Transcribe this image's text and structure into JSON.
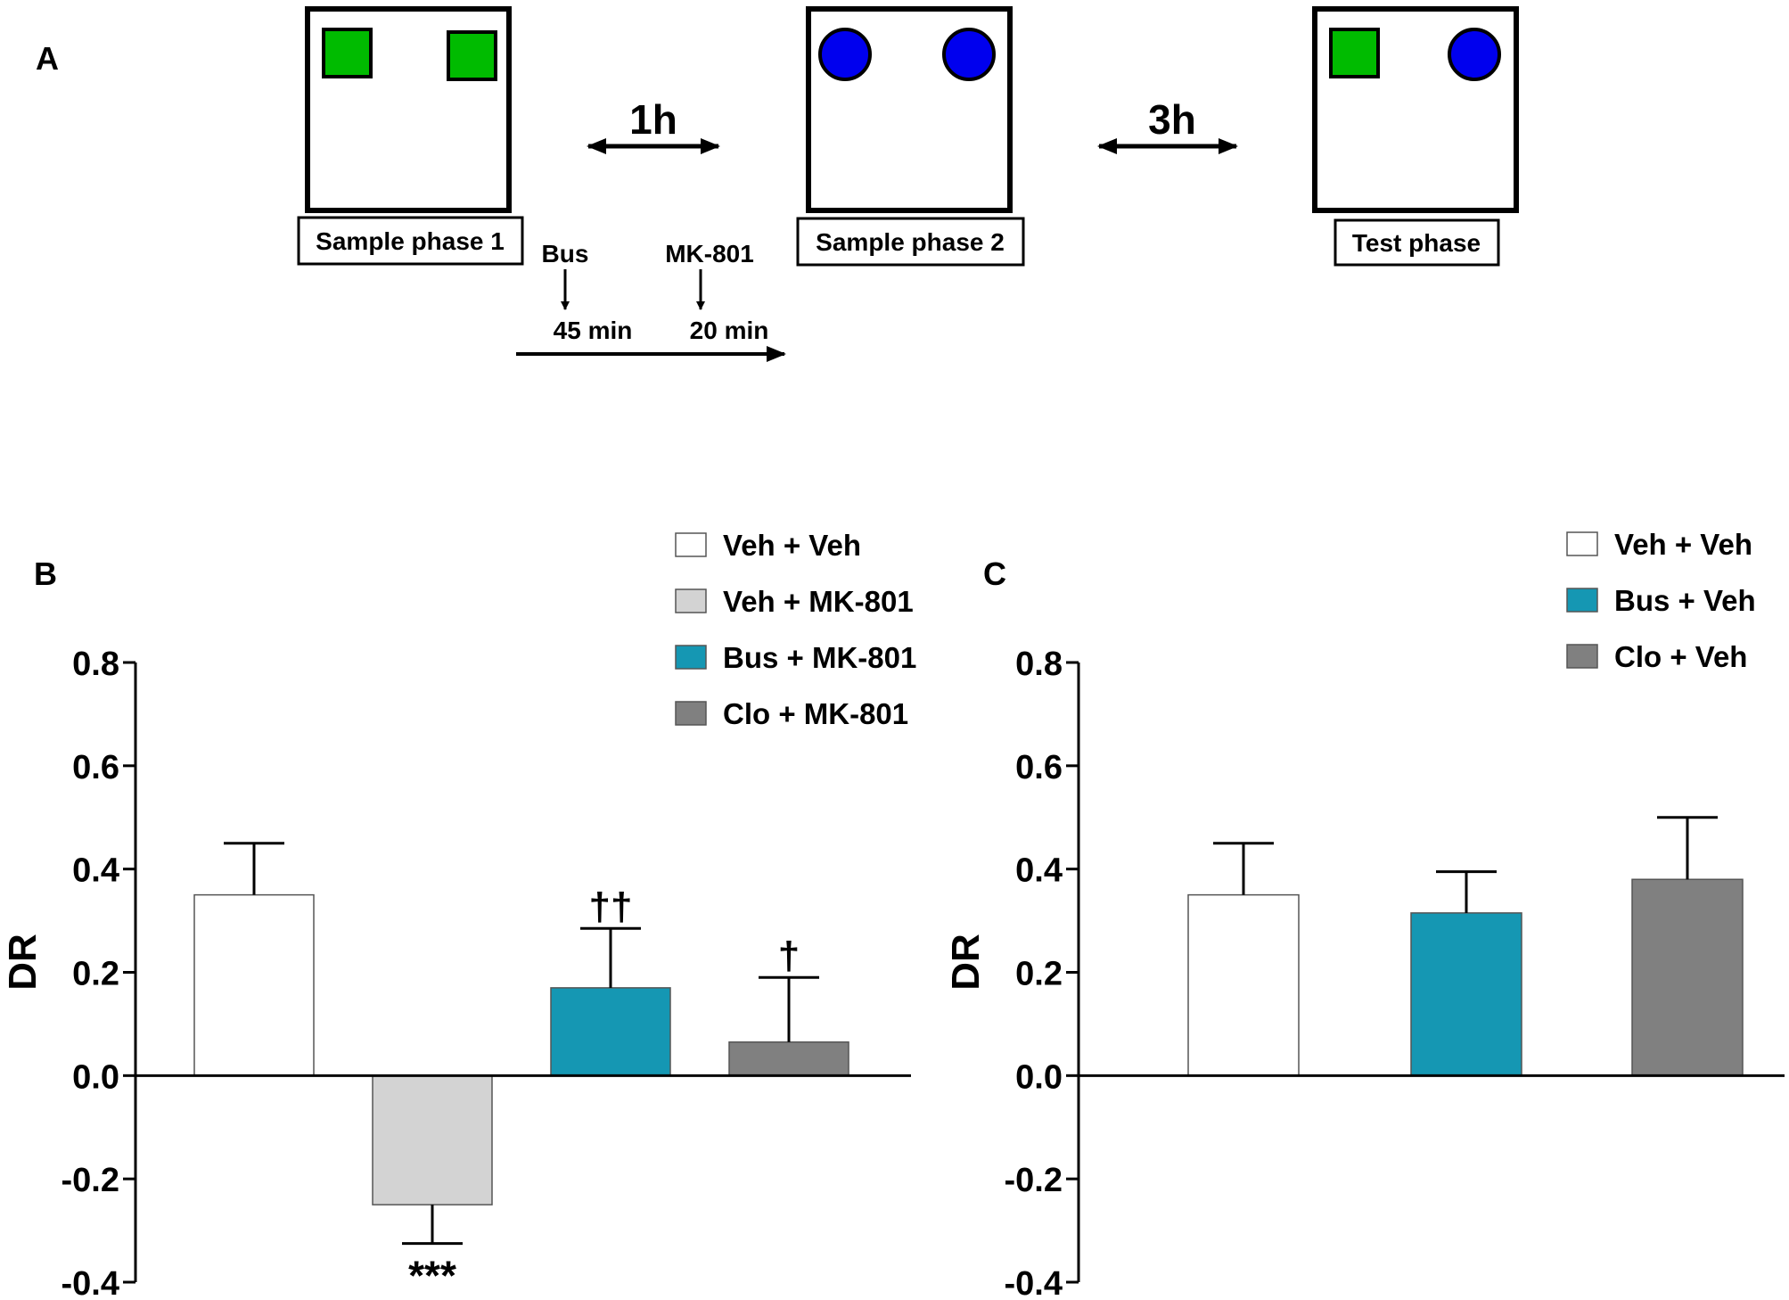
{
  "panel_a": {
    "label": "A",
    "sample1_label": "Sample phase 1",
    "sample2_label": "Sample phase 2",
    "test_label": "Test phase",
    "interval1": "1h",
    "interval2": "3h",
    "drug1": "Bus",
    "drug2": "MK-801",
    "time1": "45 min",
    "time2": "20 min",
    "colors": {
      "square": "#00bb00",
      "circle": "#0000ee"
    }
  },
  "chart_data": [
    {
      "type": "bar",
      "panel_label": "B",
      "ylabel": "DR",
      "ylim": [
        -0.4,
        0.8
      ],
      "yticks": [
        0.8,
        0.6,
        0.4,
        0.2,
        0.0,
        -0.2,
        -0.4
      ],
      "ytick_labels": [
        "0.8",
        "0.6",
        "0.4",
        "0.2",
        "0.0",
        "-0.2",
        "-0.4"
      ],
      "categories": [
        "Veh + Veh",
        "Veh + MK-801",
        "Bus + MK-801",
        "Clo + MK-801"
      ],
      "values": [
        0.35,
        -0.25,
        0.17,
        0.065
      ],
      "errors": [
        0.1,
        0.075,
        0.115,
        0.125
      ],
      "colors": [
        "#ffffff",
        "#d3d3d3",
        "#1597b3",
        "#808080"
      ],
      "annotations": [
        "",
        "***",
        "††",
        "†"
      ],
      "legend": [
        "Veh + Veh",
        "Veh + MK-801",
        "Bus + MK-801",
        "Clo + MK-801"
      ],
      "legend_position": "top-right"
    },
    {
      "type": "bar",
      "panel_label": "C",
      "ylabel": "DR",
      "ylim": [
        -0.4,
        0.8
      ],
      "yticks": [
        0.8,
        0.6,
        0.4,
        0.2,
        0.0,
        -0.2,
        -0.4
      ],
      "ytick_labels": [
        "0.8",
        "0.6",
        "0.4",
        "0.2",
        "0.0",
        "-0.2",
        "-0.4"
      ],
      "categories": [
        "Veh + Veh",
        "Bus + Veh",
        "Clo + Veh"
      ],
      "values": [
        0.35,
        0.315,
        0.38
      ],
      "errors": [
        0.1,
        0.08,
        0.12
      ],
      "colors": [
        "#ffffff",
        "#1597b3",
        "#808080"
      ],
      "annotations": [
        "",
        "",
        ""
      ],
      "legend": [
        "Veh + Veh",
        "Bus + Veh",
        "Clo + Veh"
      ],
      "legend_position": "top-right"
    }
  ]
}
